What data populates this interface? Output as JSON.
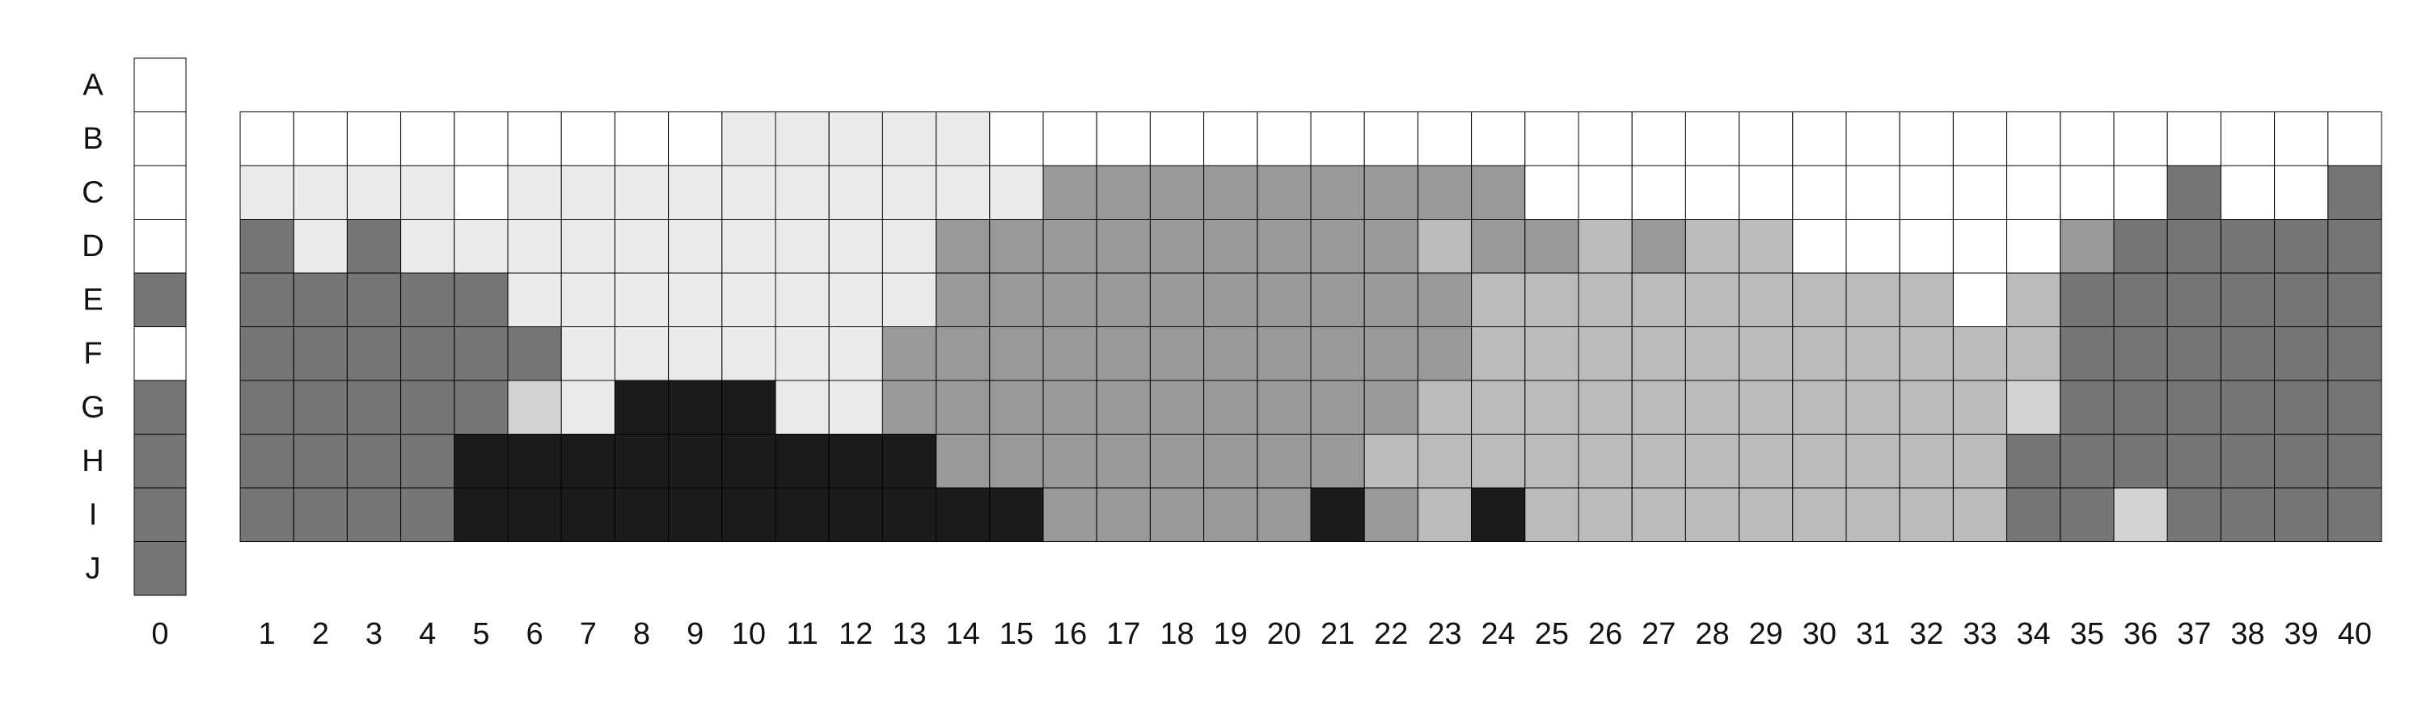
{
  "chart_data": {
    "type": "heatmap",
    "title": "",
    "xlabel": "",
    "ylabel": "",
    "rows": [
      "A",
      "B",
      "C",
      "D",
      "E",
      "F",
      "G",
      "H",
      "I",
      "J"
    ],
    "reference_column": {
      "label": "0",
      "values": [
        0,
        0,
        0,
        0,
        5,
        0,
        5,
        5,
        5,
        5
      ]
    },
    "columns": [
      "1",
      "2",
      "3",
      "4",
      "5",
      "6",
      "7",
      "8",
      "9",
      "10",
      "11",
      "12",
      "13",
      "14",
      "15",
      "16",
      "17",
      "18",
      "19",
      "20",
      "21",
      "22",
      "23",
      "24",
      "25",
      "26",
      "27",
      "28",
      "29",
      "30",
      "31",
      "32",
      "33",
      "34",
      "35",
      "36",
      "37",
      "38",
      "39",
      "40"
    ],
    "grid_rows": [
      "B",
      "C",
      "D",
      "E",
      "F",
      "G",
      "H",
      "I"
    ],
    "value_colors": [
      "#ffffff",
      "#ebebeb",
      "#d3d3d3",
      "#bbbbbb",
      "#999999",
      "#767676",
      "#1b1b1b"
    ],
    "matrix": [
      [
        0,
        0,
        0,
        0,
        0,
        0,
        0,
        0,
        0,
        1,
        1,
        1,
        1,
        1,
        0,
        0,
        0,
        0,
        0,
        0,
        0,
        0,
        0,
        0,
        0,
        0,
        0,
        0,
        0,
        0,
        0,
        0,
        0,
        0,
        0,
        0,
        0,
        0,
        0,
        0
      ],
      [
        1,
        1,
        1,
        1,
        0,
        1,
        1,
        1,
        1,
        1,
        1,
        1,
        1,
        1,
        1,
        4,
        4,
        4,
        4,
        4,
        4,
        4,
        4,
        4,
        0,
        0,
        0,
        0,
        0,
        0,
        0,
        0,
        0,
        0,
        0,
        0,
        5,
        0,
        0,
        5
      ],
      [
        5,
        1,
        5,
        1,
        1,
        1,
        1,
        1,
        1,
        1,
        1,
        1,
        1,
        4,
        4,
        4,
        4,
        4,
        4,
        4,
        4,
        4,
        3,
        4,
        4,
        3,
        4,
        3,
        3,
        0,
        0,
        0,
        0,
        0,
        4,
        5,
        5,
        5,
        5,
        5
      ],
      [
        5,
        5,
        5,
        5,
        5,
        1,
        1,
        1,
        1,
        1,
        1,
        1,
        1,
        4,
        4,
        4,
        4,
        4,
        4,
        4,
        4,
        4,
        4,
        3,
        3,
        3,
        3,
        3,
        3,
        3,
        3,
        3,
        0,
        3,
        5,
        5,
        5,
        5,
        5,
        5
      ],
      [
        5,
        5,
        5,
        5,
        5,
        5,
        1,
        1,
        1,
        1,
        1,
        1,
        4,
        4,
        4,
        4,
        4,
        4,
        4,
        4,
        4,
        4,
        4,
        3,
        3,
        3,
        3,
        3,
        3,
        3,
        3,
        3,
        3,
        3,
        5,
        5,
        5,
        5,
        5,
        5
      ],
      [
        5,
        5,
        5,
        5,
        5,
        2,
        1,
        6,
        6,
        6,
        1,
        1,
        4,
        4,
        4,
        4,
        4,
        4,
        4,
        4,
        4,
        4,
        3,
        3,
        3,
        3,
        3,
        3,
        3,
        3,
        3,
        3,
        3,
        2,
        5,
        5,
        5,
        5,
        5,
        5
      ],
      [
        5,
        5,
        5,
        5,
        6,
        6,
        6,
        6,
        6,
        6,
        6,
        6,
        6,
        4,
        4,
        4,
        4,
        4,
        4,
        4,
        4,
        3,
        3,
        3,
        3,
        3,
        3,
        3,
        3,
        3,
        3,
        3,
        3,
        5,
        5,
        5,
        5,
        5,
        5,
        5
      ],
      [
        5,
        5,
        5,
        5,
        6,
        6,
        6,
        6,
        6,
        6,
        6,
        6,
        6,
        6,
        6,
        4,
        4,
        4,
        4,
        4,
        6,
        4,
        3,
        6,
        3,
        3,
        3,
        3,
        3,
        3,
        3,
        3,
        3,
        5,
        5,
        2,
        5,
        5,
        5,
        5
      ]
    ]
  }
}
